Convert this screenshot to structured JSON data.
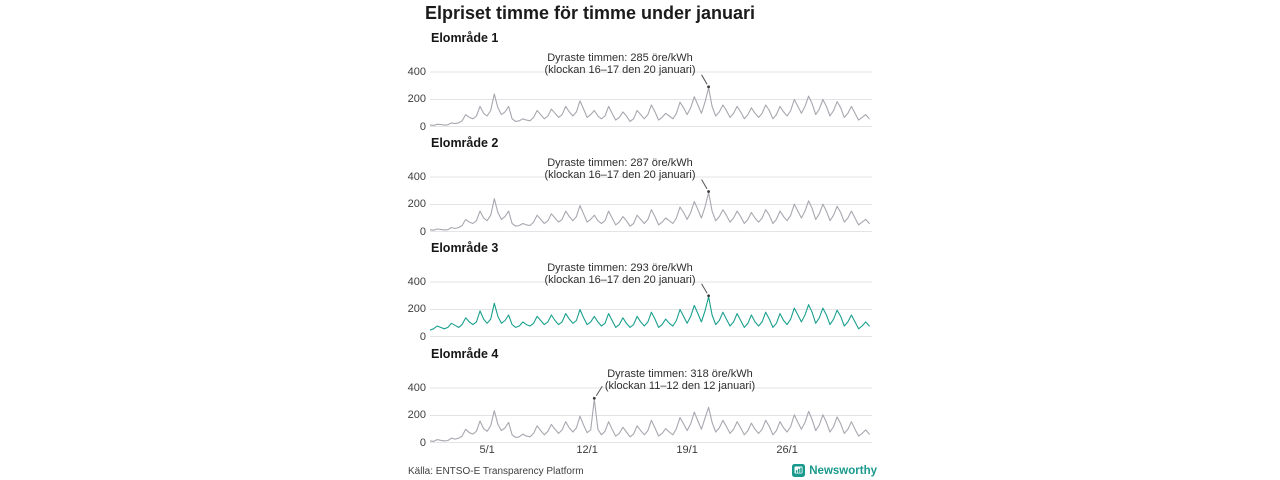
{
  "page": {
    "title": "Elpriset timme för timme under januari",
    "source": "Källa: ENTSO-E Transparency Platform",
    "brand": "Newsworthy"
  },
  "chart_data": {
    "type": "line",
    "title": "Elpriset timme för timme under januari",
    "x": {
      "unit": "dag i januari (värden samplade var 6:e timme, 1/1–31/1)",
      "tick_labels": [
        "5/1",
        "12/1",
        "19/1",
        "26/1"
      ],
      "tick_days": [
        5,
        12,
        19,
        26
      ],
      "range_days": [
        1,
        32
      ]
    },
    "y": {
      "unit": "öre/kWh",
      "ticks": [
        400,
        200,
        0
      ],
      "lim": [
        0,
        400
      ]
    },
    "grid": true,
    "legend": "none",
    "colors": {
      "grid": "#e3e3e7",
      "zero_axis": "#c9c9cd",
      "gray_series": "#a7a7b0",
      "highlight_series": "#1aa08e",
      "annotation_pointer": "#555555"
    },
    "panels": [
      {
        "name": "Elområde 1",
        "color": "#a7a7b0",
        "annotation_line1": "Dyraste timmen: 285 öre/kWh",
        "annotation_line2": "(klockan 16–17 den 20 januari)",
        "peak": {
          "value": 285,
          "day": 20,
          "hours": "16–17",
          "label_side": "left"
        },
        "values": [
          15,
          12,
          20,
          18,
          14,
          16,
          30,
          25,
          30,
          45,
          90,
          70,
          60,
          80,
          150,
          100,
          80,
          120,
          240,
          140,
          90,
          110,
          150,
          60,
          40,
          45,
          60,
          50,
          45,
          70,
          120,
          90,
          60,
          80,
          130,
          100,
          70,
          90,
          150,
          110,
          80,
          110,
          190,
          130,
          70,
          90,
          120,
          80,
          60,
          80,
          150,
          100,
          50,
          70,
          110,
          80,
          40,
          60,
          120,
          90,
          60,
          90,
          160,
          110,
          50,
          70,
          100,
          80,
          60,
          100,
          180,
          140,
          90,
          140,
          220,
          160,
          100,
          180,
          285,
          150,
          80,
          110,
          160,
          120,
          70,
          100,
          150,
          110,
          60,
          90,
          140,
          100,
          70,
          100,
          160,
          120,
          60,
          90,
          150,
          110,
          80,
          120,
          200,
          150,
          100,
          150,
          225,
          170,
          90,
          130,
          200,
          150,
          80,
          120,
          185,
          140,
          70,
          100,
          150,
          100,
          50,
          70,
          90,
          60
        ]
      },
      {
        "name": "Elområde 2",
        "color": "#a7a7b0",
        "annotation_line1": "Dyraste timmen: 287 öre/kWh",
        "annotation_line2": "(klockan 16–17 den 20 januari)",
        "peak": {
          "value": 287,
          "day": 20,
          "hours": "16–17",
          "label_side": "left"
        },
        "values": [
          16,
          13,
          22,
          19,
          15,
          17,
          32,
          26,
          32,
          47,
          92,
          72,
          62,
          82,
          152,
          102,
          82,
          122,
          242,
          142,
          92,
          112,
          152,
          62,
          42,
          47,
          62,
          52,
          47,
          72,
          122,
          92,
          62,
          82,
          132,
          102,
          72,
          92,
          152,
          112,
          82,
          112,
          192,
          132,
          72,
          92,
          122,
          82,
          62,
          82,
          152,
          102,
          52,
          72,
          112,
          82,
          42,
          62,
          122,
          92,
          62,
          92,
          162,
          112,
          52,
          72,
          102,
          82,
          62,
          102,
          182,
          142,
          92,
          142,
          222,
          162,
          102,
          182,
          287,
          152,
          82,
          112,
          162,
          122,
          72,
          102,
          152,
          112,
          62,
          92,
          142,
          102,
          72,
          102,
          162,
          122,
          62,
          92,
          152,
          112,
          82,
          122,
          202,
          152,
          102,
          152,
          227,
          172,
          92,
          132,
          202,
          152,
          82,
          122,
          187,
          142,
          72,
          102,
          152,
          102,
          52,
          72,
          92,
          62
        ]
      },
      {
        "name": "Elområde 3",
        "color": "#1aa08e",
        "annotation_line1": "Dyraste timmen: 293 öre/kWh",
        "annotation_line2": "(klockan 16–17 den 20 januari)",
        "peak": {
          "value": 293,
          "day": 20,
          "hours": "16–17",
          "label_side": "left"
        },
        "values": [
          50,
          60,
          80,
          70,
          60,
          70,
          100,
          85,
          70,
          90,
          140,
          110,
          90,
          110,
          190,
          130,
          100,
          130,
          245,
          150,
          100,
          120,
          160,
          90,
          70,
          80,
          110,
          90,
          80,
          100,
          150,
          120,
          90,
          110,
          160,
          120,
          90,
          110,
          170,
          130,
          100,
          120,
          200,
          140,
          90,
          110,
          150,
          110,
          80,
          100,
          170,
          120,
          70,
          90,
          140,
          100,
          70,
          90,
          150,
          110,
          80,
          110,
          180,
          130,
          70,
          90,
          130,
          100,
          80,
          120,
          200,
          150,
          100,
          150,
          230,
          170,
          110,
          190,
          293,
          160,
          90,
          120,
          180,
          130,
          80,
          110,
          170,
          120,
          70,
          100,
          160,
          110,
          80,
          110,
          180,
          130,
          70,
          100,
          170,
          120,
          90,
          130,
          210,
          160,
          110,
          160,
          235,
          180,
          100,
          140,
          210,
          160,
          90,
          130,
          195,
          150,
          80,
          110,
          160,
          110,
          60,
          80,
          110,
          80
        ]
      },
      {
        "name": "Elområde 4",
        "color": "#a7a7b0",
        "annotation_line1": "Dyraste timmen: 318 öre/kWh",
        "annotation_line2": "(klockan 11–12 den 12 januari)",
        "peak": {
          "value": 318,
          "day": 12,
          "hours": "11–12",
          "label_side": "right"
        },
        "values": [
          15,
          12,
          25,
          20,
          15,
          18,
          35,
          28,
          35,
          50,
          100,
          75,
          65,
          85,
          160,
          105,
          85,
          125,
          235,
          135,
          90,
          110,
          150,
          60,
          40,
          45,
          65,
          50,
          45,
          70,
          125,
          90,
          60,
          85,
          135,
          100,
          70,
          95,
          155,
          110,
          80,
          110,
          195,
          130,
          75,
          95,
          318,
          100,
          60,
          85,
          155,
          100,
          50,
          70,
          115,
          80,
          45,
          65,
          125,
          90,
          60,
          90,
          165,
          110,
          50,
          70,
          105,
          80,
          60,
          105,
          185,
          140,
          90,
          140,
          225,
          160,
          100,
          180,
          260,
          150,
          80,
          110,
          165,
          120,
          70,
          100,
          155,
          110,
          60,
          90,
          145,
          100,
          70,
          100,
          165,
          120,
          60,
          90,
          155,
          110,
          80,
          120,
          205,
          150,
          100,
          150,
          230,
          170,
          90,
          130,
          205,
          150,
          80,
          120,
          190,
          140,
          70,
          100,
          155,
          100,
          50,
          70,
          95,
          65
        ]
      }
    ]
  }
}
